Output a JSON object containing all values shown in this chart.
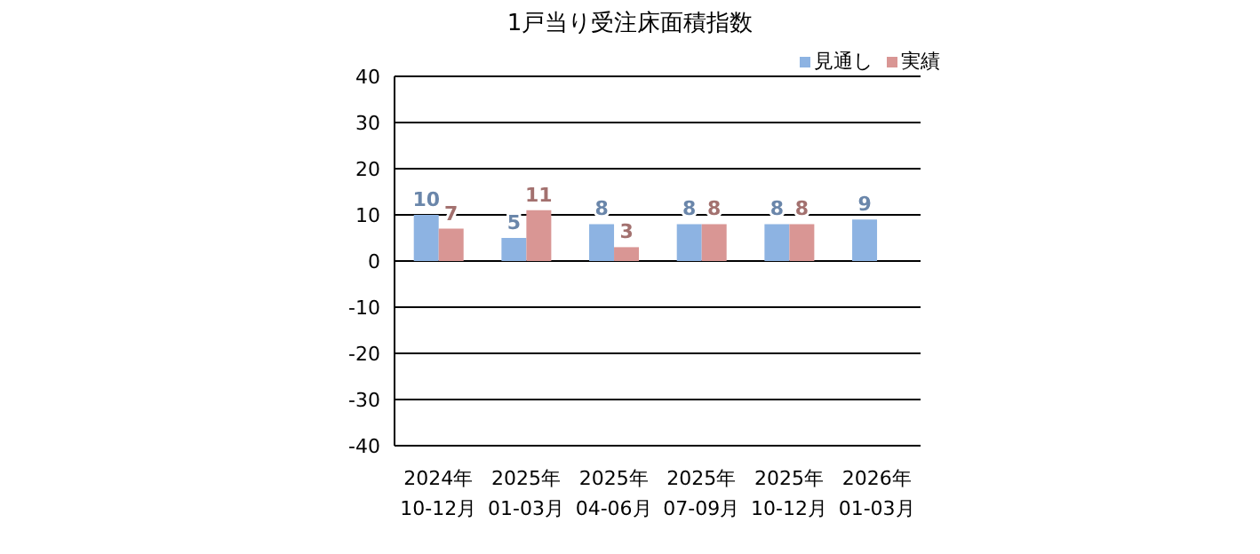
{
  "chart_data": {
    "type": "bar",
    "title": "1戸当り受注床面積指数",
    "categories": [
      "2024年\n10-12月",
      "2025年\n01-03月",
      "2025年\n04-06月",
      "2025年\n07-09月",
      "2025年\n10-12月",
      "2026年\n01-03月"
    ],
    "series": [
      {
        "name": "見通し",
        "color": "#8db3e2",
        "values": [
          10,
          5,
          8,
          8,
          8,
          9
        ]
      },
      {
        "name": "実績",
        "color": "#d99694",
        "values": [
          7,
          11,
          3,
          8,
          8,
          null
        ]
      }
    ],
    "ylim": [
      -40,
      40
    ],
    "yticks": [
      -40,
      -30,
      -20,
      -10,
      0,
      10,
      20,
      30,
      40
    ],
    "grid": "y",
    "legend": "top right",
    "data_labels": true
  }
}
